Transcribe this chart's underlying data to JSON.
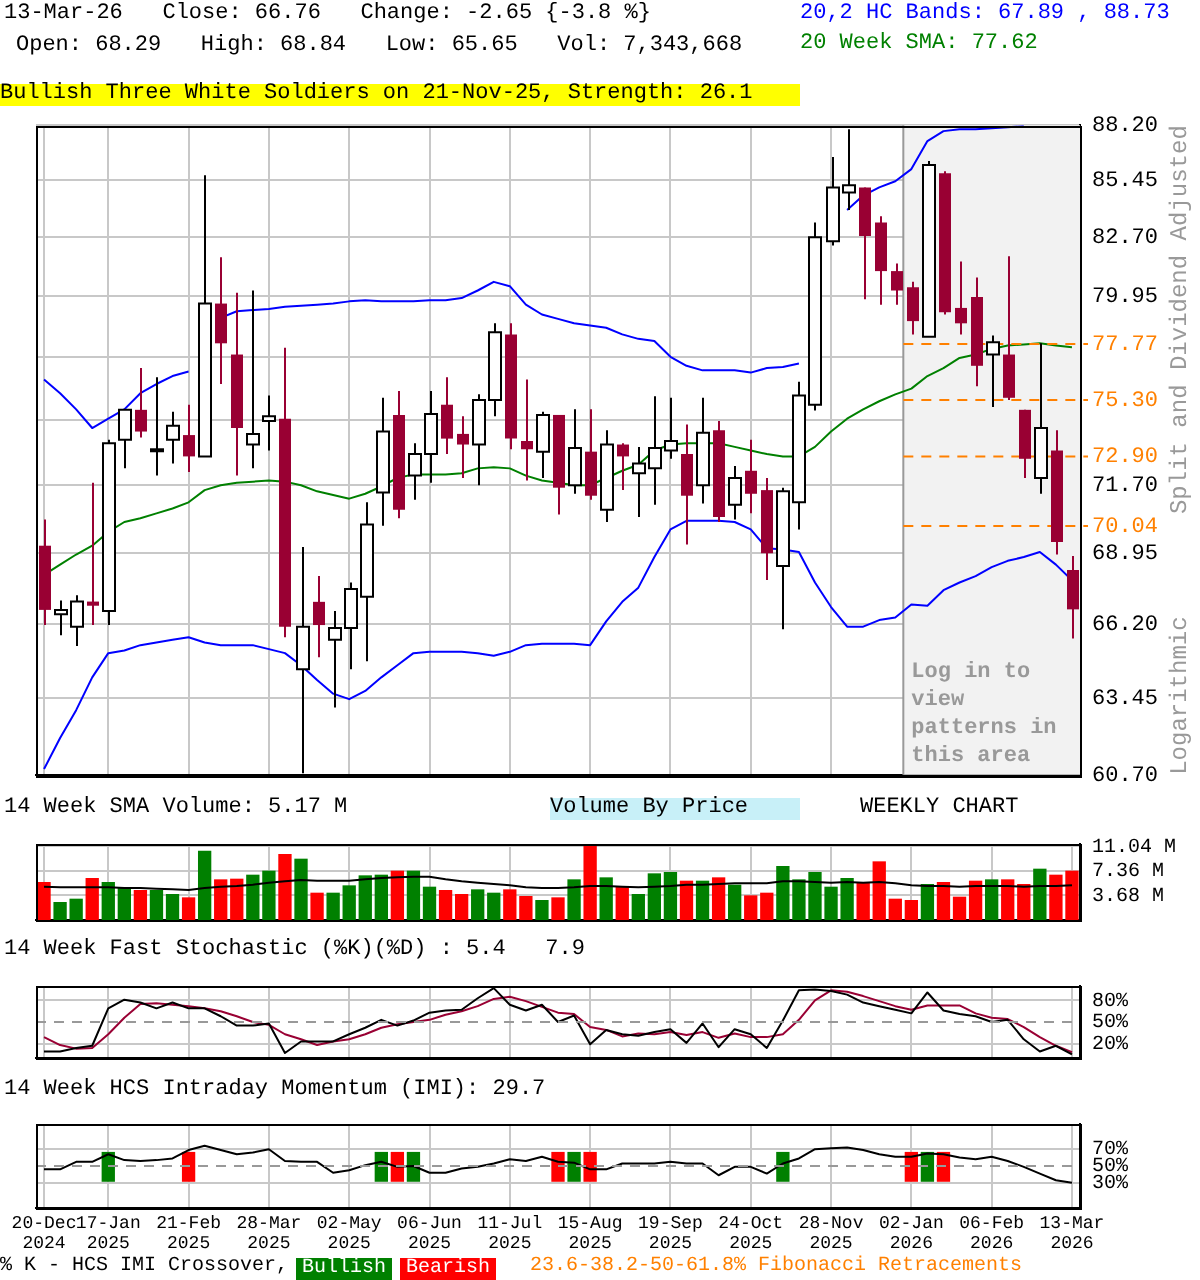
{
  "chart_data": [
    {
      "type": "candlestick",
      "title": "13-Mar-26   Close: 66.76   Change: -2.65 {-3.8 %}",
      "subtitle": "Open: 68.29   High: 68.84   Low: 65.65   Vol: 7,343,668",
      "ylabel": "Split and Dividend Adjusted",
      "annotations": [
        "Bullish Three White Soldiers on 21-Nov-25, Strength: 26.1",
        "Logarithmic"
      ],
      "categories": [
        "20-Dec 2024",
        null,
        null,
        null,
        "17-Jan 2025",
        null,
        null,
        null,
        null,
        "21-Feb 2025",
        null,
        null,
        null,
        null,
        "28-Mar 2025",
        null,
        null,
        null,
        null,
        "02-May 2025",
        null,
        null,
        null,
        null,
        "06-Jun 2025",
        null,
        null,
        null,
        null,
        "11-Jul 2025",
        null,
        null,
        null,
        null,
        "15-Aug 2025",
        null,
        null,
        null,
        null,
        "19-Sep 2025",
        null,
        null,
        null,
        null,
        "24-Oct 2025",
        null,
        null,
        null,
        null,
        "28-Nov 2025",
        null,
        null,
        null,
        null,
        "02-Jan 2026",
        null,
        null,
        null,
        null,
        "06-Feb 2026",
        null,
        null,
        null,
        null,
        "13-Mar 2026"
      ],
      "ohlc": [
        [
          69.25,
          70.3,
          66.16,
          66.74
        ],
        [
          66.57,
          67.1,
          65.77,
          66.74
        ],
        [
          66.1,
          67.3,
          65.37,
          67.06
        ],
        [
          67.06,
          71.8,
          66.16,
          66.9
        ],
        [
          66.7,
          73.6,
          66.16,
          73.45
        ],
        [
          73.6,
          74.9,
          72.4,
          74.88
        ],
        [
          74.88,
          76.7,
          73.7,
          73.95
        ],
        [
          73.2,
          76.3,
          72.1,
          73.2
        ],
        [
          73.6,
          74.8,
          72.6,
          74.2
        ],
        [
          73.8,
          75.1,
          72.25,
          72.9
        ],
        [
          72.9,
          85.7,
          72.9,
          79.6
        ],
        [
          79.6,
          81.75,
          76.0,
          77.8
        ],
        [
          77.3,
          80.1,
          72.1,
          74.1
        ],
        [
          73.4,
          80.2,
          72.4,
          73.85
        ],
        [
          74.4,
          75.5,
          73.15,
          74.6
        ],
        [
          74.5,
          77.6,
          65.7,
          66.1
        ],
        [
          64.5,
          69.2,
          60.75,
          66.1
        ],
        [
          67.05,
          68.05,
          64.95,
          66.16
        ],
        [
          65.6,
          66.7,
          63.1,
          66.05
        ],
        [
          66.05,
          67.8,
          64.5,
          67.55
        ],
        [
          67.25,
          71.0,
          64.8,
          70.1
        ],
        [
          71.4,
          75.4,
          70.05,
          73.95
        ],
        [
          74.66,
          75.7,
          70.35,
          70.7
        ],
        [
          72.1,
          73.45,
          71.1,
          73.0
        ],
        [
          73.0,
          75.7,
          71.8,
          74.7
        ],
        [
          75.1,
          76.3,
          73.0,
          73.65
        ],
        [
          73.85,
          74.6,
          72.0,
          73.4
        ],
        [
          73.4,
          75.55,
          71.7,
          75.3
        ],
        [
          75.3,
          78.7,
          74.6,
          78.3
        ],
        [
          78.2,
          78.7,
          73.2,
          73.65
        ],
        [
          73.55,
          76.2,
          71.9,
          73.2
        ],
        [
          73.1,
          74.8,
          72.0,
          74.66
        ],
        [
          74.66,
          74.66,
          70.5,
          71.6
        ],
        [
          71.7,
          74.9,
          71.35,
          73.25
        ],
        [
          73.1,
          74.9,
          71.1,
          71.27
        ],
        [
          70.7,
          74.0,
          70.2,
          73.4
        ],
        [
          73.4,
          73.45,
          71.5,
          72.9
        ],
        [
          72.2,
          73.3,
          70.4,
          72.6
        ],
        [
          72.4,
          75.47,
          70.9,
          73.25
        ],
        [
          73.15,
          75.4,
          72.8,
          73.55
        ],
        [
          73.0,
          74.25,
          69.3,
          71.27
        ],
        [
          71.7,
          75.4,
          70.95,
          73.9
        ],
        [
          74.0,
          74.4,
          70.2,
          70.4
        ],
        [
          70.9,
          72.5,
          70.3,
          72.0
        ],
        [
          72.3,
          73.6,
          70.55,
          71.35
        ],
        [
          71.5,
          72.0,
          67.9,
          68.95
        ],
        [
          68.45,
          71.6,
          66.0,
          71.45
        ],
        [
          71.0,
          76.1,
          69.9,
          75.5
        ],
        [
          75.1,
          83.4,
          74.85,
          82.7
        ],
        [
          82.5,
          86.6,
          82.3,
          85.1
        ],
        [
          84.85,
          88.0,
          84.0,
          85.2
        ],
        [
          85.1,
          85.1,
          79.8,
          82.75
        ],
        [
          83.4,
          83.7,
          79.55,
          81.1
        ],
        [
          81.1,
          81.46,
          79.55,
          80.2
        ],
        [
          80.35,
          80.6,
          78.2,
          78.8
        ],
        [
          78.1,
          86.4,
          78.1,
          86.2
        ],
        [
          85.8,
          85.9,
          79.1,
          79.2
        ],
        [
          79.4,
          81.55,
          78.2,
          78.7
        ],
        [
          79.9,
          80.8,
          75.9,
          76.8
        ],
        [
          77.3,
          78.15,
          75.0,
          77.85
        ],
        [
          77.3,
          81.8,
          75.3,
          75.4
        ],
        [
          74.88,
          74.88,
          72.0,
          72.8
        ],
        [
          72.0,
          77.8,
          71.35,
          74.1
        ],
        [
          73.15,
          74.0,
          68.9,
          69.4
        ],
        [
          68.29,
          68.84,
          65.65,
          66.76
        ]
      ],
      "colors": [
        "#990033",
        "#ffffff",
        "#ffffff",
        "#990033",
        "#ffffff",
        "#ffffff",
        "#990033",
        "#000000",
        "#ffffff",
        "#990033",
        "#ffffff",
        "#990033",
        "#990033",
        "#ffffff",
        "#ffffff",
        "#990033",
        "#ffffff",
        "#990033",
        "#ffffff",
        "#ffffff",
        "#ffffff",
        "#ffffff",
        "#990033",
        "#ffffff",
        "#ffffff",
        "#990033",
        "#990033",
        "#ffffff",
        "#ffffff",
        "#990033",
        "#990033",
        "#ffffff",
        "#990033",
        "#ffffff",
        "#990033",
        "#ffffff",
        "#990033",
        "#ffffff",
        "#ffffff",
        "#ffffff",
        "#990033",
        "#ffffff",
        "#990033",
        "#ffffff",
        "#990033",
        "#990033",
        "#ffffff",
        "#ffffff",
        "#ffffff",
        "#ffffff",
        "#ffffff",
        "#990033",
        "#990033",
        "#990033",
        "#990033",
        "#ffffff",
        "#990033",
        "#990033",
        "#990033",
        "#ffffff",
        "#990033",
        "#990033",
        "#ffffff",
        "#990033",
        "#990033"
      ],
      "series": [
        {
          "name": "20,2 HC Bands: 67.89 , 88.73",
          "type": "line",
          "color": "#0000ff",
          "values": [
            76.2,
            75.6,
            74.9,
            74.1,
            74.5,
            74.9,
            75.6,
            76.0,
            76.35,
            76.55,
            null,
            78.95,
            79.25,
            79.3,
            79.35,
            79.45,
            79.5,
            79.55,
            79.6,
            79.7,
            79.75,
            79.7,
            79.7,
            79.7,
            79.75,
            79.75,
            79.85,
            80.2,
            80.6,
            80.4,
            79.55,
            79.1,
            78.9,
            78.7,
            78.6,
            78.5,
            78.2,
            78.0,
            77.9,
            77.2,
            76.8,
            76.6,
            76.6,
            76.6,
            76.5,
            76.7,
            76.75,
            76.9,
            null,
            null,
            84.0,
            84.7,
            85.1,
            85.4,
            86.0,
            87.4,
            87.9,
            88.0,
            88.0,
            88.05,
            88.1,
            88.15,
            null,
            null,
            null
          ]
        },
        {
          "type": "line",
          "color": "#0000ff",
          "values": [
            60.9,
            62.0,
            63.0,
            64.2,
            65.1,
            65.2,
            65.4,
            65.5,
            65.6,
            65.7,
            65.5,
            65.4,
            65.4,
            65.4,
            65.25,
            65.1,
            64.65,
            64.1,
            63.6,
            63.4,
            63.7,
            64.2,
            64.65,
            65.1,
            65.15,
            65.15,
            65.15,
            65.1,
            65.0,
            65.15,
            65.4,
            65.45,
            65.45,
            65.45,
            65.4,
            66.3,
            67.05,
            67.6,
            68.8,
            69.9,
            70.25,
            70.25,
            70.25,
            70.2,
            69.9,
            69.15,
            69.1,
            69.0,
            67.8,
            66.85,
            66.1,
            66.1,
            66.35,
            66.45,
            66.95,
            66.9,
            67.5,
            67.8,
            68.05,
            68.4,
            68.65,
            68.8,
            69.0,
            68.5,
            67.89
          ]
        },
        {
          "name": "20 Week SMA: 77.62",
          "type": "line",
          "color": "#008000",
          "values": [
            68.1,
            68.5,
            68.9,
            69.25,
            69.8,
            70.2,
            70.35,
            70.55,
            70.75,
            71.0,
            71.5,
            71.7,
            71.8,
            71.85,
            71.9,
            71.85,
            71.7,
            71.45,
            71.3,
            71.15,
            71.35,
            71.65,
            72.0,
            72.15,
            72.15,
            72.15,
            72.2,
            72.4,
            72.45,
            72.4,
            72.1,
            71.9,
            71.8,
            71.7,
            71.7,
            72.0,
            72.3,
            72.55,
            73.15,
            73.4,
            73.45,
            73.45,
            73.45,
            73.3,
            73.15,
            73.0,
            72.9,
            72.9,
            73.3,
            73.95,
            74.5,
            74.9,
            75.25,
            75.55,
            75.8,
            76.35,
            76.7,
            77.15,
            77.3,
            77.55,
            77.7,
            77.75,
            77.8,
            77.7,
            77.62
          ]
        }
      ],
      "log": true,
      "ylim": [
        60.7,
        88.2
      ],
      "yticks": [
        {
          "value": 60.7,
          "label": "60.70"
        },
        {
          "value": 63.45,
          "label": "63.45"
        },
        {
          "value": 66.2,
          "label": "66.20"
        },
        {
          "value": 68.95,
          "label": "68.95"
        },
        {
          "value": 71.7,
          "label": "71.70"
        },
        {
          "value": 74.45,
          "label": null
        },
        {
          "value": 77.2,
          "label": null
        },
        {
          "value": 79.95,
          "label": "79.95"
        },
        {
          "value": 82.7,
          "label": "82.70"
        },
        {
          "value": 85.45,
          "label": "85.45"
        },
        {
          "value": 88.2,
          "label": "88.20"
        }
      ],
      "ref_lines": [
        {
          "axis": "y",
          "value": 77.77,
          "label": "77.77",
          "color": "#ff8000",
          "line_style": "dashed"
        },
        {
          "axis": "y",
          "value": 75.3,
          "label": "75.30",
          "color": "#ff8000",
          "line_style": "dashed"
        },
        {
          "axis": "y",
          "value": 72.9,
          "label": "72.90",
          "color": "#ff8000",
          "line_style": "dashed"
        },
        {
          "axis": "y",
          "value": 70.04,
          "label": "70.04",
          "color": "#ff8000",
          "line_style": "dashed"
        }
      ],
      "bands": [
        {
          "axis": "x",
          "from": "02-Jan 2026",
          "to": "13-Mar 2026",
          "label": "Log in to view patterns in this area",
          "color": "#f2f2f2"
        }
      ],
      "grid": true,
      "legend": "top right",
      "tick_labels": "y"
    },
    {
      "type": "bar",
      "title": "14 Week SMA Volume: 5.17 M",
      "annotations": [
        "Volume By Price",
        "WEEKLY CHART"
      ],
      "categories": [
        "20-Dec 2024",
        null,
        null,
        null,
        "17-Jan 2025",
        null,
        null,
        null,
        null,
        "21-Feb 2025",
        null,
        null,
        null,
        null,
        "28-Mar 2025",
        null,
        null,
        null,
        null,
        "02-May 2025",
        null,
        null,
        null,
        null,
        "06-Jun 2025",
        null,
        null,
        null,
        null,
        "11-Jul 2025",
        null,
        null,
        null,
        null,
        "15-Aug 2025",
        null,
        null,
        null,
        null,
        "19-Sep 2025",
        null,
        null,
        null,
        null,
        "24-Oct 2025",
        null,
        null,
        null,
        null,
        "28-Nov 2025",
        null,
        null,
        null,
        null,
        "02-Jan 2026",
        null,
        null,
        null,
        null,
        "06-Feb 2026",
        null,
        null,
        null,
        null,
        "13-Mar 2026"
      ],
      "series": [
        {
          "colors": [
            "#ff0000",
            "#008000",
            "#008000",
            "#ff0000",
            "#008000",
            "#008000",
            "#ff0000",
            "#008000",
            "#008000",
            "#ff0000",
            "#008000",
            "#ff0000",
            "#ff0000",
            "#008000",
            "#008000",
            "#ff0000",
            "#008000",
            "#ff0000",
            "#008000",
            "#008000",
            "#008000",
            "#008000",
            "#ff0000",
            "#008000",
            "#008000",
            "#ff0000",
            "#ff0000",
            "#008000",
            "#008000",
            "#ff0000",
            "#ff0000",
            "#008000",
            "#ff0000",
            "#008000",
            "#ff0000",
            "#008000",
            "#ff0000",
            "#008000",
            "#008000",
            "#008000",
            "#ff0000",
            "#008000",
            "#ff0000",
            "#008000",
            "#ff0000",
            "#ff0000",
            "#008000",
            "#008000",
            "#008000",
            "#008000",
            "#008000",
            "#ff0000",
            "#ff0000",
            "#ff0000",
            "#ff0000",
            "#008000",
            "#ff0000",
            "#ff0000",
            "#ff0000",
            "#008000",
            "#ff0000",
            "#ff0000",
            "#008000",
            "#ff0000",
            "#ff0000"
          ],
          "values": [
            5.6,
            2.6,
            3.1,
            6.2,
            5.6,
            4.7,
            4.4,
            4.4,
            3.8,
            3.3,
            10.3,
            6.0,
            6.1,
            6.7,
            7.3,
            9.8,
            9.1,
            4.0,
            4.0,
            5.1,
            6.6,
            6.7,
            7.3,
            7.3,
            4.9,
            4.4,
            3.8,
            4.5,
            4.0,
            4.5,
            3.5,
            2.9,
            3.3,
            6.0,
            11.3,
            6.3,
            4.9,
            3.8,
            6.9,
            7.1,
            5.8,
            5.8,
            6.3,
            5.2,
            3.6,
            4.0,
            8.0,
            6.0,
            7.1,
            4.9,
            6.2,
            5.6,
            8.7,
            3.1,
            2.9,
            5.3,
            5.6,
            3.4,
            5.8,
            6.0,
            6.0,
            5.3,
            7.6,
            6.7,
            7.3
          ]
        },
        {
          "type": "line",
          "color": "#000000",
          "values": [
            5.0,
            4.9,
            4.9,
            4.9,
            4.9,
            4.8,
            4.8,
            4.7,
            4.6,
            4.5,
            4.8,
            5.0,
            5.1,
            5.3,
            5.6,
            5.8,
            6.0,
            5.9,
            5.9,
            5.9,
            6.1,
            6.3,
            6.4,
            6.5,
            6.5,
            6.1,
            5.8,
            5.6,
            5.4,
            5.2,
            4.9,
            4.8,
            4.8,
            4.9,
            5.1,
            5.1,
            5.0,
            4.9,
            5.0,
            5.1,
            5.3,
            5.3,
            5.4,
            5.5,
            5.5,
            5.5,
            5.8,
            5.8,
            5.7,
            5.6,
            5.7,
            5.6,
            5.7,
            5.5,
            5.2,
            5.1,
            5.1,
            5.0,
            5.1,
            5.1,
            5.1,
            5.0,
            5.1,
            5.1,
            5.2
          ]
        }
      ],
      "ylim": [
        0,
        11.4
      ],
      "yticks": [
        {
          "value": 3.68,
          "label": "3.68 M"
        },
        {
          "value": 7.36,
          "label": "7.36 M"
        },
        {
          "value": 11.04,
          "label": "11.04 M"
        }
      ],
      "grid": true,
      "tick_labels": "y"
    },
    {
      "type": "line",
      "title": "14 Week Fast Stochastic (%K)(%D) : 5.4   7.9",
      "categories": [
        "20-Dec 2024",
        null,
        null,
        null,
        "17-Jan 2025",
        null,
        null,
        null,
        null,
        "21-Feb 2025",
        null,
        null,
        null,
        null,
        "28-Mar 2025",
        null,
        null,
        null,
        null,
        "02-May 2025",
        null,
        null,
        null,
        null,
        "06-Jun 2025",
        null,
        null,
        null,
        null,
        "11-Jul 2025",
        null,
        null,
        null,
        null,
        "15-Aug 2025",
        null,
        null,
        null,
        null,
        "19-Sep 2025",
        null,
        null,
        null,
        null,
        "24-Oct 2025",
        null,
        null,
        null,
        null,
        "28-Nov 2025",
        null,
        null,
        null,
        null,
        "02-Jan 2026",
        null,
        null,
        null,
        null,
        "06-Feb 2026",
        null,
        null,
        null,
        null,
        "13-Mar 2026"
      ],
      "series": [
        {
          "color": "#000000",
          "values": [
            9,
            9,
            14,
            17,
            69,
            81,
            77,
            69,
            77,
            69,
            69,
            58,
            45,
            45,
            48,
            7,
            23,
            23,
            23,
            33,
            42,
            53,
            45,
            52,
            63,
            66,
            67,
            83,
            97,
            74,
            66,
            74,
            50,
            59,
            19,
            39,
            33,
            31,
            36,
            40,
            21,
            48,
            15,
            40,
            33,
            14,
            52,
            94,
            95,
            93,
            88,
            77,
            72,
            67,
            62,
            91,
            66,
            61,
            58,
            50,
            53,
            26,
            9,
            17,
            5
          ]
        },
        {
          "color": "#990033",
          "values": [
            29,
            18,
            13,
            14,
            33,
            56,
            75,
            76,
            74,
            72,
            69,
            65,
            58,
            50,
            46,
            33,
            26,
            18,
            23,
            26,
            33,
            42,
            47,
            50,
            53,
            60,
            65,
            72,
            82,
            85,
            79,
            71,
            63,
            61,
            43,
            39,
            30,
            34,
            33,
            36,
            32,
            36,
            28,
            34,
            29,
            29,
            33,
            53,
            80,
            94,
            92,
            86,
            79,
            72,
            67,
            73,
            73,
            73,
            62,
            56,
            54,
            43,
            29,
            17,
            8
          ]
        }
      ],
      "ylim": [
        0,
        100
      ],
      "yticks": [
        {
          "value": 20,
          "label": "20%"
        },
        {
          "value": 50,
          "label": "50%"
        },
        {
          "value": 80,
          "label": "80%"
        }
      ],
      "ref_lines": [
        {
          "axis": "y",
          "value": 50,
          "color": "#999999",
          "line_style": "dashed"
        }
      ],
      "grid": true,
      "tick_labels": "y"
    },
    {
      "type": "line",
      "title": "14 Week HCS Intraday Momentum (IMI): 29.7",
      "legend_title": "% K - HCS IMI Crossover,",
      "annotations": [
        "23.6-38.2-50-61.8% Fibonacci Retracements"
      ],
      "categories": [
        "20-Dec 2024",
        null,
        null,
        null,
        "17-Jan 2025",
        null,
        null,
        null,
        null,
        "21-Feb 2025",
        null,
        null,
        null,
        null,
        "28-Mar 2025",
        null,
        null,
        null,
        null,
        "02-May 2025",
        null,
        null,
        null,
        null,
        "06-Jun 2025",
        null,
        null,
        null,
        null,
        "11-Jul 2025",
        null,
        null,
        null,
        null,
        "15-Aug 2025",
        null,
        null,
        null,
        null,
        "19-Sep 2025",
        null,
        null,
        null,
        null,
        "24-Oct 2025",
        null,
        null,
        null,
        null,
        "28-Nov 2025",
        null,
        null,
        null,
        null,
        "02-Jan 2026",
        null,
        null,
        null,
        null,
        "06-Feb 2026",
        null,
        null,
        null,
        null,
        "13-Mar 2026"
      ],
      "series": [
        {
          "name": "Bullish",
          "type": "bar",
          "color": "#008000",
          "base": [
            null,
            null,
            null,
            null,
            32,
            null,
            null,
            null,
            null,
            null,
            null,
            null,
            null,
            null,
            null,
            null,
            null,
            null,
            null,
            null,
            null,
            32,
            null,
            32,
            null,
            null,
            null,
            null,
            null,
            null,
            null,
            null,
            null,
            32,
            null,
            null,
            null,
            null,
            null,
            null,
            null,
            null,
            null,
            null,
            null,
            null,
            32,
            null,
            null,
            null,
            null,
            null,
            null,
            null,
            null,
            32,
            null,
            null,
            null,
            null,
            null,
            null,
            null,
            null,
            null
          ],
          "values": [
            null,
            null,
            null,
            null,
            34,
            null,
            null,
            null,
            null,
            null,
            null,
            null,
            null,
            null,
            null,
            null,
            null,
            null,
            null,
            null,
            null,
            34,
            null,
            34,
            null,
            null,
            null,
            null,
            null,
            null,
            null,
            null,
            null,
            34,
            null,
            null,
            null,
            null,
            null,
            null,
            null,
            null,
            null,
            null,
            null,
            null,
            34,
            null,
            null,
            null,
            null,
            null,
            null,
            null,
            null,
            34,
            null,
            null,
            null,
            null,
            null,
            null,
            null,
            null,
            null
          ]
        },
        {
          "name": "Bearish",
          "type": "bar",
          "color": "#ff0000",
          "base": [
            null,
            null,
            null,
            null,
            null,
            null,
            null,
            null,
            null,
            32,
            null,
            null,
            null,
            null,
            null,
            null,
            null,
            null,
            null,
            null,
            null,
            null,
            32,
            null,
            null,
            null,
            null,
            null,
            null,
            null,
            null,
            null,
            32,
            null,
            32,
            null,
            null,
            null,
            null,
            null,
            null,
            null,
            null,
            null,
            null,
            null,
            null,
            null,
            null,
            null,
            null,
            null,
            null,
            null,
            32,
            null,
            32,
            null,
            null,
            null,
            null,
            null,
            null,
            null,
            null
          ],
          "values": [
            null,
            null,
            null,
            null,
            null,
            null,
            null,
            null,
            null,
            34,
            null,
            null,
            null,
            null,
            null,
            null,
            null,
            null,
            null,
            null,
            null,
            null,
            34,
            null,
            null,
            null,
            null,
            null,
            null,
            null,
            null,
            null,
            34,
            null,
            34,
            null,
            null,
            null,
            null,
            null,
            null,
            null,
            null,
            null,
            null,
            null,
            null,
            null,
            null,
            null,
            null,
            null,
            null,
            null,
            34,
            null,
            34,
            null,
            null,
            null,
            null,
            null,
            null,
            null,
            null
          ]
        },
        {
          "color": "#000000",
          "values": [
            46,
            46,
            55,
            55,
            64,
            57,
            56,
            57,
            59,
            69,
            74,
            69,
            64,
            66,
            70,
            56,
            55,
            55,
            42,
            45,
            51,
            55,
            49,
            50,
            42,
            42,
            47,
            49,
            53,
            58,
            56,
            61,
            55,
            54,
            46,
            46,
            53,
            53,
            53,
            55,
            53,
            53,
            39,
            49,
            49,
            41,
            53,
            59,
            70,
            71,
            72,
            69,
            64,
            61,
            61,
            65,
            64,
            60,
            58,
            61,
            56,
            49,
            41,
            33,
            30
          ]
        }
      ],
      "ylim": [
        0,
        100
      ],
      "yticks": [
        {
          "value": 30,
          "label": "30%"
        },
        {
          "value": 50,
          "label": "50%"
        },
        {
          "value": 70,
          "label": "70%"
        }
      ],
      "ref_lines": [
        {
          "axis": "y",
          "value": 50,
          "color": "#999999",
          "line_style": "dashed"
        }
      ],
      "grid": true,
      "legend": "bottom"
    }
  ]
}
